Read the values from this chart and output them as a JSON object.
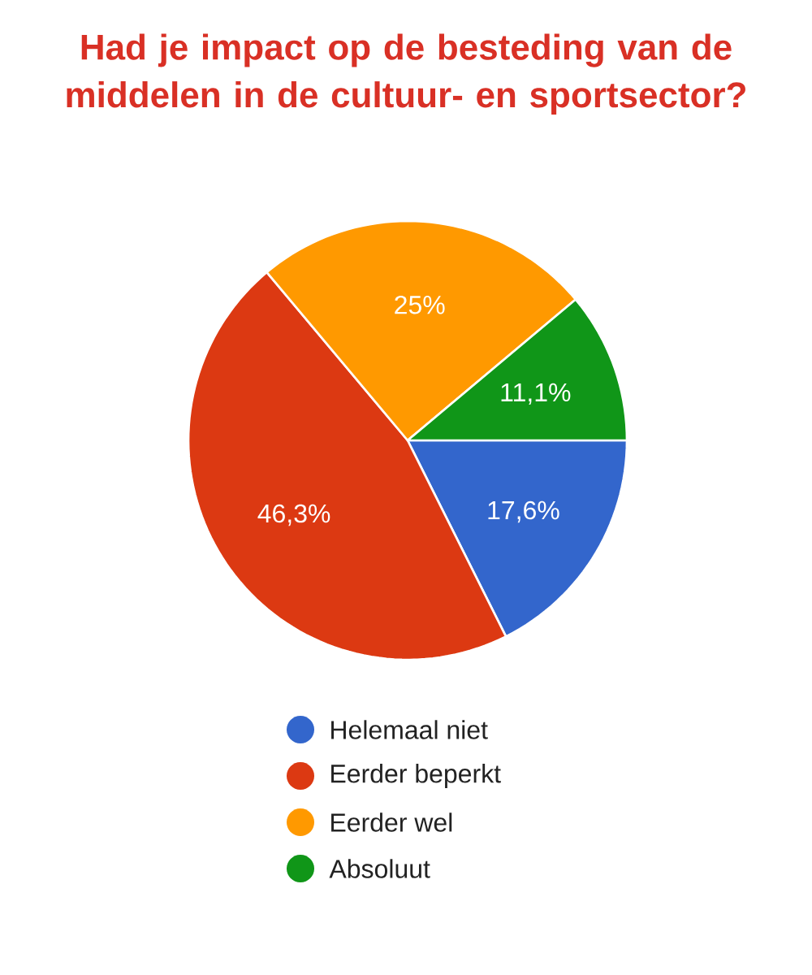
{
  "chart_data": {
    "type": "pie",
    "title": "Had je impact op de besteding van de middelen in de cultuur- en sportsector?",
    "categories": [
      "Helemaal niet",
      "Eerder beperkt",
      "Eerder wel",
      "Absoluut"
    ],
    "values": [
      17.6,
      46.3,
      25,
      11.1
    ],
    "value_labels": [
      "17,6%",
      "46,3%",
      "25%",
      "11,1%"
    ],
    "colors": [
      "#3366cc",
      "#dc3912",
      "#ff9900",
      "#109618"
    ],
    "legend": "bottom"
  }
}
